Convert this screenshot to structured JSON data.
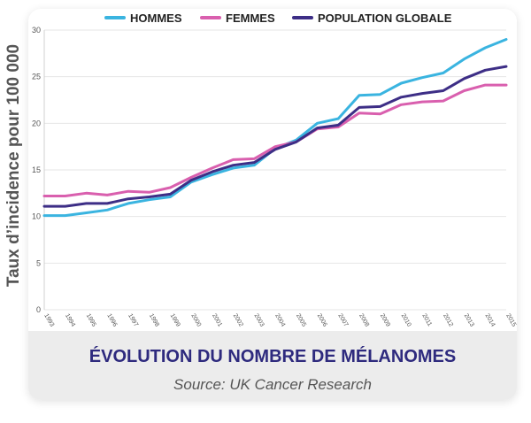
{
  "chart_data": {
    "type": "line",
    "title": "ÉVOLUTION DU NOMBRE DE MÉLANOMES",
    "source": "Source: UK Cancer Research",
    "ylabel": "Taux d’incidence pour 100 000",
    "xlabel": "",
    "ylim": [
      0,
      30
    ],
    "yticks": [
      0,
      5,
      10,
      15,
      20,
      25,
      30
    ],
    "grid": "horizontal",
    "legend_position": "top",
    "x": [
      "1993",
      "1994",
      "1995",
      "1996",
      "1997",
      "1998",
      "1999",
      "2000",
      "2001",
      "2002",
      "2003",
      "2004",
      "2005",
      "2006",
      "2007",
      "2008",
      "2009",
      "2010",
      "2011",
      "2012",
      "2013",
      "2014",
      "2015"
    ],
    "series": [
      {
        "name": "HOMMES",
        "color": "#3ab4e0",
        "values": [
          10.1,
          10.1,
          10.4,
          10.7,
          11.4,
          11.8,
          12.1,
          13.7,
          14.5,
          15.2,
          15.5,
          17.3,
          18.2,
          20.0,
          20.5,
          23.0,
          23.1,
          24.3,
          24.9,
          25.4,
          26.9,
          28.1,
          29.0
        ]
      },
      {
        "name": "FEMMES",
        "color": "#d95fae",
        "values": [
          12.2,
          12.2,
          12.5,
          12.3,
          12.7,
          12.6,
          13.1,
          14.2,
          15.2,
          16.1,
          16.2,
          17.5,
          18.0,
          19.4,
          19.6,
          21.1,
          21.0,
          22.0,
          22.3,
          22.4,
          23.5,
          24.1,
          24.1
        ]
      },
      {
        "name": "POPULATION GLOBALE",
        "color": "#3d2e86",
        "values": [
          11.1,
          11.1,
          11.4,
          11.4,
          11.9,
          12.1,
          12.4,
          13.9,
          14.8,
          15.5,
          15.8,
          17.2,
          18.0,
          19.5,
          19.8,
          21.7,
          21.8,
          22.8,
          23.2,
          23.5,
          24.8,
          25.7,
          26.1
        ]
      }
    ]
  }
}
